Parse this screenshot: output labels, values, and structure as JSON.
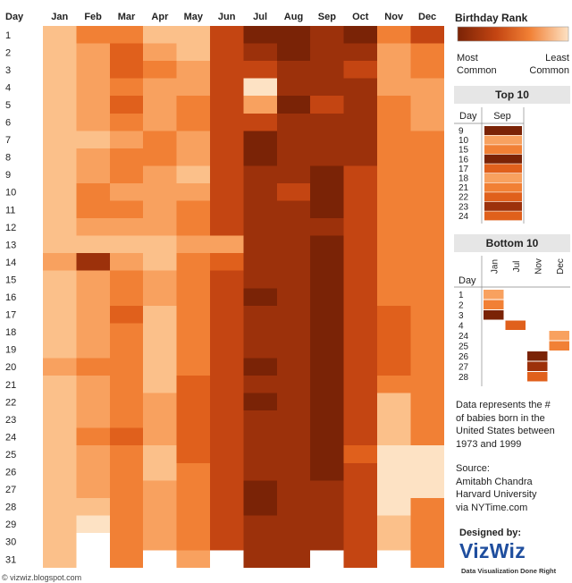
{
  "colors": {
    "scale": [
      "#fde2c4",
      "#fbc08a",
      "#f8a15f",
      "#f18035",
      "#e0601c",
      "#c44512",
      "#9c310b",
      "#7a2306"
    ],
    "empty": "#ffffff",
    "header_text": "#222222"
  },
  "chart_data": {
    "type": "heatmap",
    "title": "Birthday Rank",
    "xlabel": "",
    "ylabel": "Day",
    "legend": {
      "title": "Birthday Rank",
      "low_label": "Most Common",
      "high_label": "Least Common",
      "position": "top-right"
    },
    "months": [
      "Jan",
      "Feb",
      "Mar",
      "Apr",
      "May",
      "Jun",
      "Jul",
      "Aug",
      "Sep",
      "Oct",
      "Nov",
      "Dec"
    ],
    "days": [
      "1",
      "2",
      "3",
      "4",
      "5",
      "6",
      "7",
      "8",
      "9",
      "10",
      "11",
      "12",
      "13",
      "14",
      "15",
      "16",
      "17",
      "18",
      "19",
      "20",
      "21",
      "22",
      "23",
      "24",
      "25",
      "26",
      "27",
      "28",
      "29",
      "30",
      "31"
    ],
    "value_note": "0 = least common, 7 = most common; null = date does not exist",
    "values": [
      [
        1,
        3,
        3,
        1,
        1,
        5,
        7,
        7,
        6,
        7,
        3,
        5
      ],
      [
        1,
        2,
        4,
        2,
        1,
        5,
        6,
        7,
        6,
        6,
        2,
        3
      ],
      [
        1,
        2,
        4,
        3,
        2,
        5,
        5,
        6,
        6,
        5,
        2,
        3
      ],
      [
        1,
        2,
        3,
        2,
        2,
        5,
        0,
        6,
        6,
        6,
        2,
        2
      ],
      [
        1,
        2,
        4,
        2,
        3,
        5,
        2,
        7,
        5,
        6,
        3,
        2
      ],
      [
        1,
        2,
        3,
        2,
        3,
        5,
        5,
        6,
        6,
        6,
        3,
        2
      ],
      [
        1,
        1,
        2,
        3,
        2,
        5,
        7,
        6,
        6,
        6,
        3,
        3
      ],
      [
        1,
        2,
        3,
        3,
        2,
        5,
        7,
        6,
        6,
        6,
        3,
        3
      ],
      [
        1,
        2,
        3,
        2,
        1,
        5,
        6,
        6,
        7,
        5,
        3,
        3
      ],
      [
        1,
        3,
        2,
        2,
        2,
        5,
        6,
        5,
        7,
        5,
        3,
        3
      ],
      [
        1,
        3,
        3,
        2,
        3,
        5,
        6,
        6,
        7,
        5,
        3,
        3
      ],
      [
        1,
        2,
        2,
        2,
        3,
        5,
        6,
        6,
        6,
        5,
        3,
        3
      ],
      [
        1,
        1,
        1,
        1,
        2,
        2,
        6,
        6,
        7,
        5,
        3,
        3
      ],
      [
        2,
        6,
        2,
        1,
        3,
        4,
        6,
        6,
        7,
        5,
        3,
        3
      ],
      [
        1,
        2,
        3,
        2,
        3,
        5,
        6,
        6,
        7,
        5,
        3,
        3
      ],
      [
        1,
        2,
        3,
        2,
        3,
        5,
        7,
        6,
        7,
        5,
        3,
        3
      ],
      [
        1,
        2,
        4,
        1,
        3,
        5,
        6,
        6,
        7,
        5,
        4,
        3
      ],
      [
        1,
        2,
        3,
        1,
        3,
        5,
        6,
        6,
        7,
        5,
        4,
        3
      ],
      [
        1,
        2,
        3,
        1,
        3,
        5,
        6,
        6,
        7,
        5,
        4,
        3
      ],
      [
        2,
        3,
        3,
        1,
        3,
        5,
        7,
        6,
        7,
        5,
        4,
        3
      ],
      [
        1,
        2,
        3,
        1,
        4,
        5,
        6,
        6,
        7,
        5,
        3,
        3
      ],
      [
        1,
        2,
        3,
        2,
        4,
        5,
        7,
        6,
        7,
        5,
        1,
        3
      ],
      [
        1,
        2,
        3,
        2,
        4,
        5,
        6,
        6,
        7,
        5,
        1,
        3
      ],
      [
        1,
        3,
        4,
        2,
        4,
        5,
        6,
        6,
        7,
        5,
        1,
        3
      ],
      [
        1,
        2,
        3,
        1,
        4,
        5,
        6,
        6,
        7,
        4,
        0,
        0
      ],
      [
        1,
        2,
        3,
        1,
        3,
        5,
        6,
        6,
        7,
        5,
        0,
        0
      ],
      [
        1,
        2,
        3,
        2,
        3,
        5,
        7,
        6,
        6,
        5,
        0,
        0
      ],
      [
        1,
        1,
        3,
        2,
        3,
        5,
        7,
        6,
        6,
        5,
        0,
        3
      ],
      [
        1,
        0,
        3,
        2,
        3,
        5,
        6,
        6,
        6,
        5,
        1,
        3
      ],
      [
        1,
        null,
        3,
        2,
        3,
        5,
        6,
        6,
        6,
        5,
        1,
        3
      ],
      [
        1,
        null,
        3,
        null,
        2,
        null,
        6,
        6,
        null,
        5,
        null,
        3
      ]
    ],
    "top10": {
      "title": "Top 10",
      "col_day": "Day",
      "col_month": "Sep",
      "rows": [
        {
          "day": "9",
          "level": 7
        },
        {
          "day": "10",
          "level": 2
        },
        {
          "day": "15",
          "level": 3
        },
        {
          "day": "16",
          "level": 7
        },
        {
          "day": "17",
          "level": 4
        },
        {
          "day": "18",
          "level": 2
        },
        {
          "day": "21",
          "level": 3
        },
        {
          "day": "22",
          "level": 4
        },
        {
          "day": "23",
          "level": 6
        },
        {
          "day": "24",
          "level": 4
        }
      ]
    },
    "bottom10": {
      "title": "Bottom 10",
      "col_day": "Day",
      "months": [
        "Jan",
        "Jul",
        "Nov",
        "Dec"
      ],
      "rows": [
        {
          "day": "1",
          "cells": [
            {
              "col": 0,
              "level": 2
            }
          ]
        },
        {
          "day": "2",
          "cells": [
            {
              "col": 0,
              "level": 3
            }
          ]
        },
        {
          "day": "3",
          "cells": [
            {
              "col": 0,
              "level": 7
            }
          ]
        },
        {
          "day": "4",
          "cells": [
            {
              "col": 1,
              "level": 4
            }
          ]
        },
        {
          "day": "24",
          "cells": [
            {
              "col": 3,
              "level": 2
            }
          ]
        },
        {
          "day": "25",
          "cells": [
            {
              "col": 3,
              "level": 3
            }
          ]
        },
        {
          "day": "26",
          "cells": [
            {
              "col": 2,
              "level": 7
            }
          ]
        },
        {
          "day": "27",
          "cells": [
            {
              "col": 2,
              "level": 6
            }
          ]
        },
        {
          "day": "28",
          "cells": [
            {
              "col": 2,
              "level": 4
            }
          ]
        }
      ]
    }
  },
  "notes": {
    "description_lines": [
      "Data represents the #",
      "of babies born in the",
      "United States between",
      "1973 and 1999"
    ],
    "source_lines": [
      "Source:",
      "Amitabh Chandra",
      "Harvard University",
      "via NYTime.com"
    ]
  },
  "branding": {
    "designed_by": "Designed by:",
    "logo": "VizWiz",
    "tagline": "Data Visualization Done Right",
    "footer": "© vizwiz.blogspot.com"
  }
}
